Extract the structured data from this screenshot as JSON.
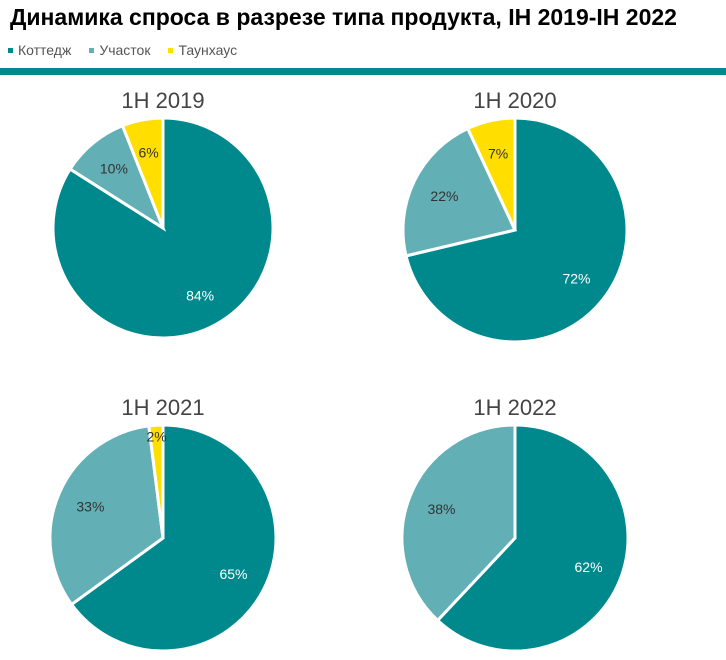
{
  "chart_data": {
    "type": "pie",
    "title": "Динамика спроса в разрезе типа продукта, IH 2019-IH 2022",
    "legend": {
      "placement": "top-left",
      "entries": [
        "Коттедж",
        "Участок",
        "Таунхаус"
      ]
    },
    "colors": [
      "#00898d",
      "#62afb5",
      "#ffde00"
    ],
    "charts": [
      {
        "title": "1H 2019",
        "values": [
          84,
          10,
          6
        ],
        "labels": [
          "84%",
          "10%",
          "6%"
        ]
      },
      {
        "title": "1H 2020",
        "values": [
          72,
          22,
          7
        ],
        "labels": [
          "72%",
          "22%",
          "7%"
        ]
      },
      {
        "title": "1H 2021",
        "values": [
          65,
          33,
          2
        ],
        "labels": [
          "65%",
          "33%",
          "2%"
        ]
      },
      {
        "title": "1H 2022",
        "values": [
          62,
          38,
          0
        ],
        "labels": [
          "62%",
          "38%",
          ""
        ]
      }
    ]
  }
}
